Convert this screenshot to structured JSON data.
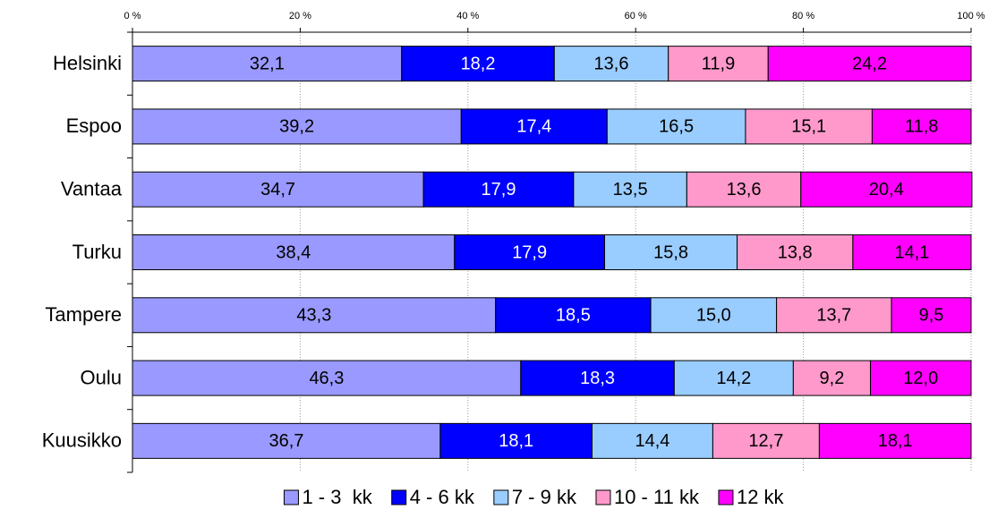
{
  "chart_data": {
    "type": "bar",
    "orientation": "horizontal",
    "stacked": true,
    "categories": [
      "Helsinki",
      "Espoo",
      "Vantaa",
      "Turku",
      "Tampere",
      "Oulu",
      "Kuusikko"
    ],
    "series": [
      {
        "name": "1 - 3  kk",
        "color": "#9999ff",
        "values": [
          32.1,
          39.2,
          34.7,
          38.4,
          43.3,
          46.3,
          36.7
        ],
        "value_labels": [
          "32,1",
          "39,2",
          "34,7",
          "38,4",
          "43,3",
          "46,3",
          "36,7"
        ]
      },
      {
        "name": "4 - 6 kk",
        "color": "#0000ff",
        "values": [
          18.2,
          17.4,
          17.9,
          17.9,
          18.5,
          18.3,
          18.1
        ],
        "value_labels": [
          "18,2",
          "17,4",
          "17,9",
          "17,9",
          "18,5",
          "18,3",
          "18,1"
        ]
      },
      {
        "name": "7 - 9 kk",
        "color": "#99ccff",
        "values": [
          13.6,
          16.5,
          13.5,
          15.8,
          15.0,
          14.2,
          14.4
        ],
        "value_labels": [
          "13,6",
          "16,5",
          "13,5",
          "15,8",
          "15,0",
          "14,2",
          "14,4"
        ]
      },
      {
        "name": "10 - 11 kk",
        "color": "#ff99cc",
        "values": [
          11.9,
          15.1,
          13.6,
          13.8,
          13.7,
          9.2,
          12.7
        ],
        "value_labels": [
          "11,9",
          "15,1",
          "13,6",
          "13,8",
          "13,7",
          "9,2",
          "12,7"
        ]
      },
      {
        "name": "12 kk",
        "color": "#ff00ff",
        "values": [
          24.2,
          11.8,
          20.4,
          14.1,
          9.5,
          12.0,
          18.1
        ],
        "value_labels": [
          "24,2",
          "11,8",
          "20,4",
          "14,1",
          "9,5",
          "12,0",
          "18,1"
        ]
      }
    ],
    "xlim": [
      0,
      100
    ],
    "xticks": [
      {
        "value": 0,
        "label": "0 %"
      },
      {
        "value": 20,
        "label": "20 %"
      },
      {
        "value": 40,
        "label": "40 %"
      },
      {
        "value": 60,
        "label": "60 %"
      },
      {
        "value": 80,
        "label": "80 %"
      },
      {
        "value": 100,
        "label": "100 %"
      }
    ],
    "grid": true,
    "legend": "bottom"
  }
}
